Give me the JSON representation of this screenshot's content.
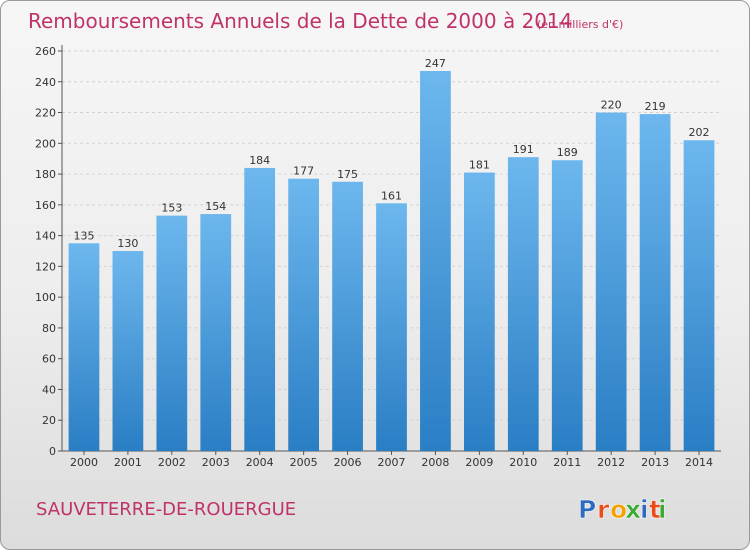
{
  "header": {
    "title": "Remboursements Annuels de la Dette de 2000 à 2014",
    "unit": "(en milliers d'€)"
  },
  "footer": {
    "town": "SAUVETERRE-DE-ROUERGUE",
    "logo_letters": [
      "P",
      "r",
      "o",
      "x",
      "i",
      "t",
      "i"
    ],
    "logo_colors": [
      "#2e6bbf",
      "#e84c1a",
      "#f2a100",
      "#3aa935",
      "#2e6bbf",
      "#e84c1a",
      "#3aa935"
    ]
  },
  "colors": {
    "bar_top": "#6db7ee",
    "bar_bottom": "#2a7ec4",
    "title": "#c0326a"
  },
  "chart_data": {
    "type": "bar",
    "title": "Remboursements Annuels de la Dette de 2000 à 2014",
    "subtitle": "(en milliers d'€)",
    "categories": [
      "2000",
      "2001",
      "2002",
      "2003",
      "2004",
      "2005",
      "2006",
      "2007",
      "2008",
      "2009",
      "2010",
      "2011",
      "2012",
      "2013",
      "2014"
    ],
    "values": [
      135,
      130,
      153,
      154,
      184,
      177,
      175,
      161,
      247,
      181,
      191,
      189,
      220,
      219,
      202
    ],
    "ylim": [
      0,
      260
    ],
    "yticks": [
      0,
      20,
      40,
      60,
      80,
      100,
      120,
      140,
      160,
      180,
      200,
      220,
      240,
      260
    ],
    "grid": true,
    "data_labels": true
  }
}
